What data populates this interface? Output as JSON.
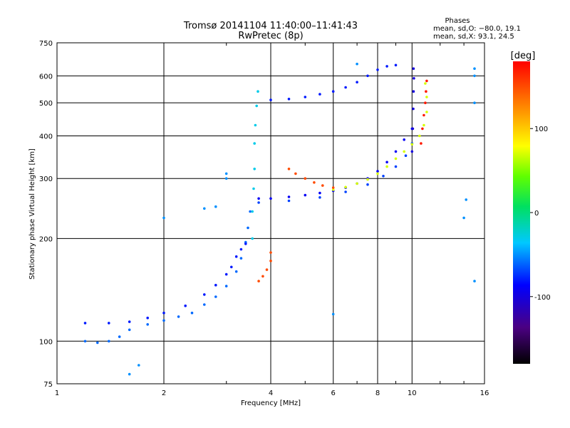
{
  "chart_data": {
    "type": "scatter",
    "title": "Tromsø 20141104 11:40:00–11:41:43",
    "subtitle": "RwPretec (8p)",
    "xlabel": "Frequency [MHz]",
    "ylabel": "Stationary phase Virtual Height [km]",
    "x_scale": "log",
    "y_scale": "log",
    "xlim": [
      1,
      16
    ],
    "ylim": [
      75,
      750
    ],
    "x_ticks": [
      1,
      2,
      4,
      6,
      8,
      10,
      16
    ],
    "y_ticks": [
      75,
      100,
      200,
      300,
      400,
      500,
      600,
      750
    ],
    "grid": true,
    "phase_stats": {
      "heading": "Phases",
      "line1": "mean, sd,O: −80.0, 19.1",
      "line2": "mean, sd,X:  93.1, 24.5"
    },
    "colorbar": {
      "label": "[deg]",
      "range": [
        -180,
        180
      ],
      "ticks": [
        100,
        0,
        -100
      ],
      "colormap": "rainbow"
    },
    "series": [
      {
        "trace": "low-layer",
        "phase_deg": -60,
        "points": [
          [
            1.2,
            100
          ],
          [
            1.3,
            99
          ],
          [
            1.4,
            100
          ],
          [
            1.5,
            103
          ],
          [
            1.6,
            108
          ],
          [
            1.8,
            112
          ],
          [
            2.0,
            115
          ],
          [
            2.2,
            118
          ],
          [
            2.4,
            121
          ],
          [
            2.6,
            128
          ],
          [
            2.8,
            135
          ],
          [
            3.0,
            145
          ],
          [
            3.2,
            160
          ],
          [
            3.3,
            175
          ],
          [
            3.4,
            195
          ],
          [
            3.45,
            215
          ],
          [
            3.5,
            240
          ]
        ]
      },
      {
        "trace": "low-layer-upper",
        "phase_deg": -80,
        "points": [
          [
            1.2,
            113
          ],
          [
            1.4,
            113
          ],
          [
            1.6,
            114
          ],
          [
            1.8,
            117
          ],
          [
            2.0,
            121
          ],
          [
            2.3,
            127
          ],
          [
            2.6,
            137
          ],
          [
            2.8,
            146
          ],
          [
            3.0,
            157
          ],
          [
            3.1,
            165
          ],
          [
            3.2,
            177
          ],
          [
            3.3,
            186
          ],
          [
            3.4,
            193
          ]
        ]
      },
      {
        "trace": "vertical-rise",
        "phase_deg": -30,
        "points": [
          [
            3.55,
            200
          ],
          [
            3.55,
            240
          ],
          [
            3.58,
            280
          ],
          [
            3.6,
            320
          ],
          [
            3.6,
            380
          ],
          [
            3.62,
            430
          ],
          [
            3.65,
            490
          ],
          [
            3.68,
            540
          ]
        ]
      },
      {
        "trace": "main-O",
        "phase_deg": -90,
        "points": [
          [
            3.7,
            262
          ],
          [
            4.0,
            262
          ],
          [
            4.5,
            265
          ],
          [
            5.0,
            268
          ],
          [
            5.5,
            272
          ],
          [
            6.0,
            276
          ],
          [
            6.5,
            282
          ],
          [
            7.0,
            290
          ],
          [
            7.5,
            300
          ],
          [
            8.0,
            315
          ],
          [
            8.5,
            335
          ],
          [
            9.0,
            360
          ],
          [
            9.5,
            390
          ],
          [
            10.0,
            420
          ]
        ]
      },
      {
        "trace": "main-O-inner",
        "phase_deg": -70,
        "points": [
          [
            3.7,
            255
          ],
          [
            4.5,
            258
          ],
          [
            5.5,
            264
          ],
          [
            6.5,
            274
          ],
          [
            7.5,
            288
          ],
          [
            8.3,
            305
          ],
          [
            9.0,
            325
          ],
          [
            9.6,
            350
          ],
          [
            10.0,
            380
          ]
        ]
      },
      {
        "trace": "high-O",
        "phase_deg": -80,
        "points": [
          [
            4.0,
            510
          ],
          [
            4.5,
            513
          ],
          [
            5.0,
            520
          ],
          [
            5.5,
            530
          ],
          [
            6.0,
            540
          ],
          [
            6.5,
            555
          ],
          [
            7.0,
            575
          ],
          [
            7.5,
            600
          ],
          [
            8.0,
            625
          ],
          [
            8.5,
            640
          ],
          [
            9.0,
            645
          ]
        ]
      },
      {
        "trace": "steep-O",
        "phase_deg": -100,
        "points": [
          [
            10.0,
            360
          ],
          [
            10.05,
            420
          ],
          [
            10.08,
            480
          ],
          [
            10.1,
            540
          ],
          [
            10.12,
            590
          ],
          [
            10.1,
            630
          ]
        ]
      },
      {
        "trace": "X-mode",
        "phase_deg": 70,
        "points": [
          [
            6.0,
            278
          ],
          [
            6.5,
            283
          ],
          [
            7.0,
            290
          ],
          [
            7.5,
            298
          ],
          [
            8.0,
            310
          ],
          [
            8.5,
            325
          ],
          [
            9.0,
            343
          ],
          [
            9.5,
            360
          ],
          [
            10.0,
            378
          ],
          [
            10.5,
            400
          ],
          [
            10.8,
            430
          ],
          [
            11.0,
            470
          ],
          [
            11.0,
            520
          ],
          [
            10.9,
            570
          ]
        ]
      },
      {
        "trace": "X-mode-branch",
        "phase_deg": 150,
        "points": [
          [
            4.5,
            320
          ],
          [
            4.7,
            310
          ],
          [
            5.0,
            300
          ],
          [
            5.3,
            292
          ],
          [
            5.6,
            286
          ],
          [
            6.0,
            282
          ]
        ]
      },
      {
        "trace": "X-mode-vertical",
        "phase_deg": 170,
        "points": [
          [
            10.6,
            380
          ],
          [
            10.7,
            420
          ],
          [
            10.8,
            460
          ],
          [
            10.9,
            500
          ],
          [
            10.95,
            540
          ],
          [
            11.0,
            580
          ]
        ]
      },
      {
        "trace": "low-X",
        "phase_deg": 150,
        "points": [
          [
            3.7,
            150
          ],
          [
            3.8,
            155
          ],
          [
            3.9,
            162
          ],
          [
            4.0,
            172
          ],
          [
            4.0,
            182
          ]
        ]
      },
      {
        "trace": "isolated",
        "phase_deg": -50,
        "points": [
          [
            1.6,
            80
          ],
          [
            1.7,
            85
          ],
          [
            2.0,
            230
          ],
          [
            2.6,
            245
          ],
          [
            2.8,
            248
          ],
          [
            3.0,
            300
          ],
          [
            3.0,
            310
          ],
          [
            14.0,
            230
          ],
          [
            14.2,
            260
          ],
          [
            15.0,
            600
          ],
          [
            15.0,
            500
          ],
          [
            15.0,
            630
          ],
          [
            15.0,
            150
          ],
          [
            6.0,
            120
          ],
          [
            7.0,
            650
          ]
        ]
      }
    ]
  }
}
